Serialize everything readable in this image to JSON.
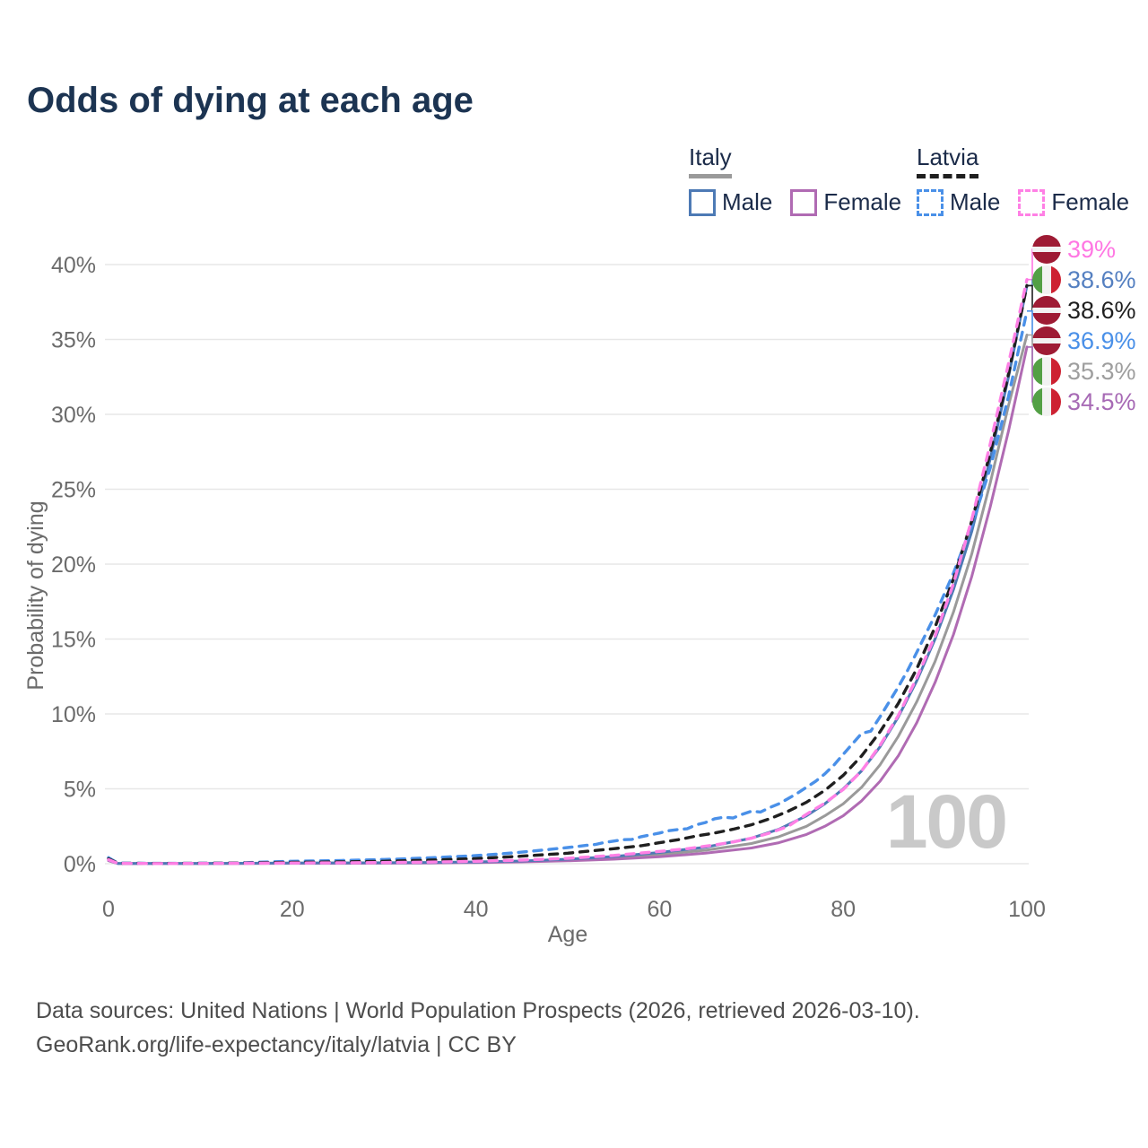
{
  "title": "Odds of dying at each age",
  "legend": {
    "groups": [
      {
        "label": "Italy",
        "line_style": "solid",
        "underline_color": "#9a9a9a",
        "items": [
          {
            "label": "Male",
            "color": "#4d7ab5"
          },
          {
            "label": "Female",
            "color": "#b06bb3"
          }
        ]
      },
      {
        "label": "Latvia",
        "line_style": "dashed",
        "underline_color": "#1f1f1f",
        "items": [
          {
            "label": "Male",
            "color": "#4a90e8"
          },
          {
            "label": "Female",
            "color": "#ff80e5"
          }
        ]
      }
    ]
  },
  "footer": {
    "line1": "Data sources: United Nations | World Population Prospects (2026, retrieved 2026-03-10).",
    "line2": "GeoRank.org/life-expectancy/italy/latvia | CC BY"
  },
  "chart_data": {
    "type": "line",
    "title": "Odds of dying at each age",
    "xlabel": "Age",
    "ylabel": "Probability of dying",
    "xlim": [
      0,
      100
    ],
    "ylim": [
      0,
      40
    ],
    "x_ticks": [
      0,
      20,
      40,
      60,
      80,
      100
    ],
    "y_ticks": [
      0,
      5,
      10,
      15,
      20,
      25,
      30,
      35,
      40
    ],
    "y_tick_suffix": "%",
    "grid": "horizontal-only",
    "watermark": "100",
    "colors": {
      "grid": "#e7e7e7",
      "tick_text": "#6b6b6b",
      "axis_title": "#6b6b6b",
      "watermark": "#c9c9c9"
    },
    "series": [
      {
        "name": "Italy Total",
        "country": "Italy",
        "sex": "Both",
        "style": "solid",
        "color": "#9a9a9a",
        "end_value": 35.3,
        "points": [
          [
            0,
            0.22
          ],
          [
            1,
            0.018
          ],
          [
            5,
            0.009
          ],
          [
            10,
            0.011
          ],
          [
            15,
            0.022
          ],
          [
            20,
            0.036
          ],
          [
            25,
            0.04
          ],
          [
            30,
            0.05
          ],
          [
            35,
            0.067
          ],
          [
            40,
            0.1
          ],
          [
            45,
            0.15
          ],
          [
            50,
            0.24
          ],
          [
            55,
            0.39
          ],
          [
            60,
            0.6
          ],
          [
            65,
            0.9
          ],
          [
            70,
            1.35
          ],
          [
            73,
            1.8
          ],
          [
            76,
            2.5
          ],
          [
            78,
            3.2
          ],
          [
            80,
            4.0
          ],
          [
            82,
            5.1
          ],
          [
            84,
            6.6
          ],
          [
            86,
            8.5
          ],
          [
            88,
            10.8
          ],
          [
            90,
            13.5
          ],
          [
            92,
            16.8
          ],
          [
            94,
            20.7
          ],
          [
            96,
            25.4
          ],
          [
            98,
            30.6
          ],
          [
            100,
            35.3
          ]
        ]
      },
      {
        "name": "Italy Female",
        "country": "Italy",
        "sex": "Female",
        "style": "solid",
        "color": "#b06bb3",
        "end_value": 34.5,
        "points": [
          [
            0,
            0.2
          ],
          [
            1,
            0.015
          ],
          [
            5,
            0.008
          ],
          [
            10,
            0.01
          ],
          [
            15,
            0.015
          ],
          [
            20,
            0.022
          ],
          [
            25,
            0.026
          ],
          [
            30,
            0.035
          ],
          [
            35,
            0.05
          ],
          [
            40,
            0.075
          ],
          [
            45,
            0.12
          ],
          [
            50,
            0.19
          ],
          [
            55,
            0.3
          ],
          [
            60,
            0.46
          ],
          [
            65,
            0.7
          ],
          [
            70,
            1.05
          ],
          [
            73,
            1.4
          ],
          [
            76,
            1.95
          ],
          [
            78,
            2.5
          ],
          [
            80,
            3.2
          ],
          [
            82,
            4.2
          ],
          [
            84,
            5.5
          ],
          [
            86,
            7.2
          ],
          [
            88,
            9.4
          ],
          [
            90,
            12.1
          ],
          [
            92,
            15.3
          ],
          [
            94,
            19.2
          ],
          [
            96,
            23.8
          ],
          [
            98,
            28.9
          ],
          [
            100,
            34.5
          ]
        ]
      },
      {
        "name": "Italy Male",
        "country": "Italy",
        "sex": "Male",
        "style": "solid",
        "color": "#4d7ab5",
        "end_value": 38.6,
        "points": [
          [
            0,
            0.25
          ],
          [
            1,
            0.02
          ],
          [
            5,
            0.01
          ],
          [
            10,
            0.012
          ],
          [
            15,
            0.03
          ],
          [
            20,
            0.05
          ],
          [
            25,
            0.055
          ],
          [
            30,
            0.065
          ],
          [
            35,
            0.085
          ],
          [
            40,
            0.12
          ],
          [
            45,
            0.18
          ],
          [
            50,
            0.3
          ],
          [
            55,
            0.48
          ],
          [
            60,
            0.75
          ],
          [
            65,
            1.1
          ],
          [
            70,
            1.7
          ],
          [
            73,
            2.3
          ],
          [
            76,
            3.2
          ],
          [
            78,
            4.0
          ],
          [
            80,
            5.0
          ],
          [
            82,
            6.2
          ],
          [
            84,
            7.8
          ],
          [
            86,
            9.8
          ],
          [
            88,
            12.2
          ],
          [
            90,
            15.0
          ],
          [
            92,
            18.3
          ],
          [
            94,
            22.2
          ],
          [
            96,
            27.0
          ],
          [
            98,
            32.5
          ],
          [
            100,
            38.6
          ]
        ]
      },
      {
        "name": "Latvia Male",
        "country": "Latvia",
        "sex": "Male",
        "style": "dashed",
        "color": "#4a90e8",
        "end_value": 36.9,
        "points": [
          [
            0,
            0.4
          ],
          [
            1,
            0.04
          ],
          [
            5,
            0.025
          ],
          [
            10,
            0.03
          ],
          [
            14,
            0.05
          ],
          [
            16,
            0.09
          ],
          [
            18,
            0.13
          ],
          [
            20,
            0.16
          ],
          [
            22,
            0.18
          ],
          [
            24,
            0.2
          ],
          [
            26,
            0.22
          ],
          [
            28,
            0.25
          ],
          [
            30,
            0.28
          ],
          [
            32,
            0.32
          ],
          [
            34,
            0.37
          ],
          [
            36,
            0.42
          ],
          [
            38,
            0.48
          ],
          [
            40,
            0.54
          ],
          [
            42,
            0.62
          ],
          [
            44,
            0.72
          ],
          [
            46,
            0.83
          ],
          [
            48,
            0.95
          ],
          [
            50,
            1.08
          ],
          [
            52,
            1.22
          ],
          [
            53,
            1.28
          ],
          [
            54,
            1.42
          ],
          [
            56,
            1.6
          ],
          [
            57,
            1.62
          ],
          [
            58,
            1.8
          ],
          [
            60,
            2.05
          ],
          [
            61,
            2.2
          ],
          [
            62,
            2.28
          ],
          [
            63,
            2.33
          ],
          [
            64,
            2.6
          ],
          [
            65,
            2.75
          ],
          [
            66,
            3.0
          ],
          [
            67,
            3.1
          ],
          [
            68,
            3.05
          ],
          [
            69,
            3.3
          ],
          [
            70,
            3.5
          ],
          [
            71,
            3.45
          ],
          [
            72,
            3.75
          ],
          [
            73,
            4.0
          ],
          [
            74,
            4.35
          ],
          [
            75,
            4.7
          ],
          [
            76,
            5.1
          ],
          [
            77,
            5.5
          ],
          [
            78,
            6.0
          ],
          [
            79,
            6.6
          ],
          [
            80,
            7.3
          ],
          [
            81,
            8.0
          ],
          [
            82,
            8.7
          ],
          [
            83,
            8.85
          ],
          [
            84,
            9.8
          ],
          [
            85,
            10.8
          ],
          [
            86,
            11.8
          ],
          [
            87,
            12.9
          ],
          [
            88,
            14.1
          ],
          [
            90,
            16.6
          ],
          [
            92,
            19.4
          ],
          [
            94,
            22.6
          ],
          [
            96,
            26.4
          ],
          [
            98,
            31.2
          ],
          [
            100,
            36.9
          ]
        ]
      },
      {
        "name": "Latvia Total",
        "country": "Latvia",
        "sex": "Both",
        "style": "dashed",
        "color": "#1f1f1f",
        "end_value": 38.6,
        "points": [
          [
            0,
            0.33
          ],
          [
            1,
            0.03
          ],
          [
            5,
            0.018
          ],
          [
            10,
            0.022
          ],
          [
            15,
            0.05
          ],
          [
            20,
            0.09
          ],
          [
            25,
            0.12
          ],
          [
            30,
            0.16
          ],
          [
            35,
            0.24
          ],
          [
            40,
            0.34
          ],
          [
            45,
            0.5
          ],
          [
            50,
            0.7
          ],
          [
            55,
            1.0
          ],
          [
            58,
            1.2
          ],
          [
            60,
            1.4
          ],
          [
            62,
            1.6
          ],
          [
            64,
            1.85
          ],
          [
            66,
            2.05
          ],
          [
            68,
            2.3
          ],
          [
            70,
            2.6
          ],
          [
            72,
            3.0
          ],
          [
            74,
            3.5
          ],
          [
            76,
            4.1
          ],
          [
            78,
            4.9
          ],
          [
            80,
            5.9
          ],
          [
            82,
            7.2
          ],
          [
            84,
            8.8
          ],
          [
            86,
            10.7
          ],
          [
            88,
            13.0
          ],
          [
            90,
            15.8
          ],
          [
            92,
            19.0
          ],
          [
            94,
            22.9
          ],
          [
            96,
            27.4
          ],
          [
            98,
            32.7
          ],
          [
            100,
            38.6
          ]
        ]
      },
      {
        "name": "Latvia Female",
        "country": "Latvia",
        "sex": "Female",
        "style": "dashed",
        "color": "#ff80e5",
        "end_value": 39.0,
        "points": [
          [
            0,
            0.27
          ],
          [
            1,
            0.022
          ],
          [
            5,
            0.012
          ],
          [
            10,
            0.016
          ],
          [
            15,
            0.03
          ],
          [
            20,
            0.045
          ],
          [
            25,
            0.06
          ],
          [
            30,
            0.08
          ],
          [
            35,
            0.11
          ],
          [
            40,
            0.16
          ],
          [
            45,
            0.24
          ],
          [
            50,
            0.36
          ],
          [
            55,
            0.55
          ],
          [
            60,
            0.82
          ],
          [
            63,
            1.0
          ],
          [
            66,
            1.25
          ],
          [
            68,
            1.45
          ],
          [
            70,
            1.7
          ],
          [
            72,
            2.05
          ],
          [
            74,
            2.5
          ],
          [
            76,
            3.3
          ],
          [
            78,
            4.05
          ],
          [
            80,
            4.95
          ],
          [
            82,
            6.2
          ],
          [
            84,
            7.9
          ],
          [
            86,
            9.9
          ],
          [
            88,
            12.4
          ],
          [
            90,
            15.2
          ],
          [
            92,
            18.7
          ],
          [
            94,
            23.0
          ],
          [
            96,
            28.0
          ],
          [
            98,
            33.4
          ],
          [
            100,
            39.0
          ]
        ]
      }
    ],
    "end_labels": [
      {
        "text": "39%",
        "value": 39.0,
        "color": "#ff77e3",
        "flag": "latvia",
        "series": "Latvia Female"
      },
      {
        "text": "38.6%",
        "value": 38.6,
        "color": "#5580c1",
        "flag": "italy",
        "series": "Italy Male"
      },
      {
        "text": "38.6%",
        "value": 38.6,
        "color": "#1f1f1f",
        "flag": "latvia",
        "series": "Latvia Total"
      },
      {
        "text": "36.9%",
        "value": 36.9,
        "color": "#4a90e8",
        "flag": "latvia",
        "series": "Latvia Male"
      },
      {
        "text": "35.3%",
        "value": 35.3,
        "color": "#9e9e9e",
        "flag": "italy",
        "series": "Italy Total"
      },
      {
        "text": "34.5%",
        "value": 34.5,
        "color": "#a76ab5",
        "flag": "italy",
        "series": "Italy Female"
      }
    ],
    "flag_colors": {
      "latvia_red": "#9E1B34",
      "italy_green": "#53a045",
      "italy_red": "#cd2232",
      "white": "#f2f2f2"
    }
  }
}
